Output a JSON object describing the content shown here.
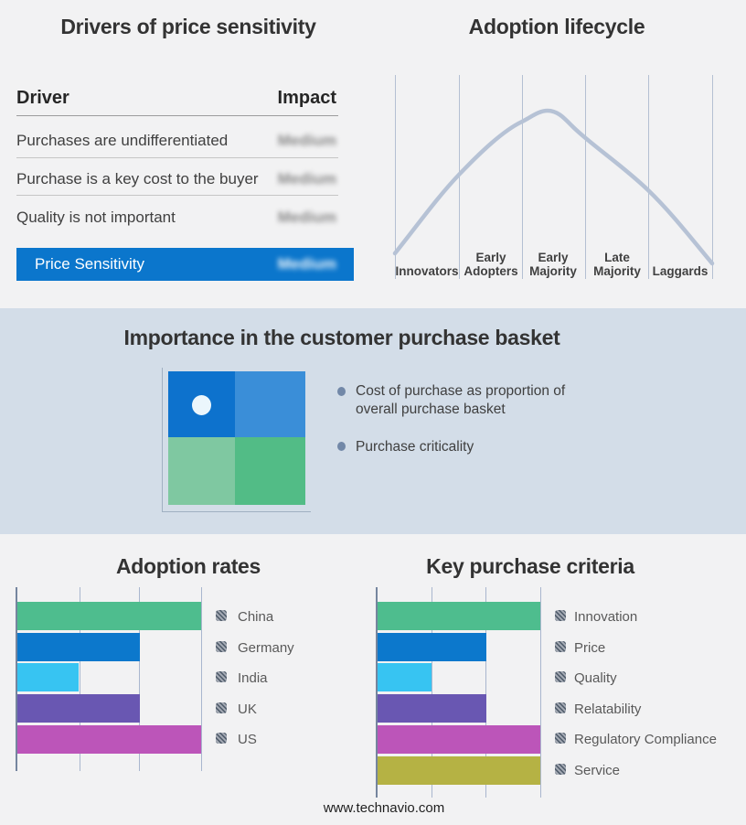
{
  "drivers_panel": {
    "title": "Drivers of price sensitivity",
    "col_driver": "Driver",
    "col_impact": "Impact",
    "impact_values_blurred": true,
    "rows": [
      {
        "driver": "Purchases are undifferentiated",
        "impact": "Medium"
      },
      {
        "driver": "Purchase is a key cost to the buyer",
        "impact": "Medium"
      },
      {
        "driver": "Quality is not important",
        "impact": "Medium"
      }
    ],
    "summary": {
      "label": "Price Sensitivity",
      "impact": "Medium"
    }
  },
  "basket_panel": {
    "title": "Importance in the customer purchase basket",
    "bullets": [
      "Cost of purchase as proportion of overall purchase basket",
      "Purchase criticality"
    ],
    "quadrant_colors": {
      "top_left": "#0d72cd",
      "top_right": "#3a8ed8",
      "bottom_left": "#7fc8a1",
      "bottom_right": "#52bc86"
    }
  },
  "footer": "www.technavio.com",
  "colors": {
    "band_mid_bg": "#d3dde8",
    "band_bg": "#f2f2f3",
    "accent_blue": "#0b76cc",
    "curve": "#b6c2d5",
    "green": "#4ebd8e",
    "blue": "#0c78cc",
    "cyan": "#37c4f2",
    "purple": "#6957b2",
    "magenta": "#bc55b9",
    "olive": "#b5b244"
  },
  "chart_data": [
    {
      "type": "line",
      "title": "Adoption lifecycle",
      "x_categories": [
        "Innovators",
        "Early Adopters",
        "Early Majority",
        "Late Majority",
        "Laggards"
      ],
      "stage_lines": [
        [
          "Innovators"
        ],
        [
          "Early",
          "Adopters"
        ],
        [
          "Early",
          "Majority"
        ],
        [
          "Late",
          "Majority"
        ],
        [
          "Laggards"
        ]
      ],
      "description": "Bell curve rising from Innovators, peaking at Early Majority, falling to Laggards",
      "grid": "vertical stage divider lines, no y axis"
    },
    {
      "type": "bar",
      "orientation": "horizontal",
      "title": "Adoption rates",
      "categories": [
        "China",
        "Germany",
        "India",
        "UK",
        "US"
      ],
      "values": [
        3,
        2,
        1,
        2,
        3
      ],
      "xlim": [
        0,
        3
      ],
      "value_scale": "relative units estimated from 3 unlabeled gridlines",
      "bar_colors": [
        "#4ebd8e",
        "#0c78cc",
        "#37c4f2",
        "#6957b2",
        "#bc55b9"
      ],
      "legend_position": "right"
    },
    {
      "type": "bar",
      "orientation": "horizontal",
      "title": "Key purchase criteria",
      "categories": [
        "Innovation",
        "Price",
        "Quality",
        "Relatability",
        "Regulatory Compliance",
        "Service"
      ],
      "values": [
        3,
        2,
        1,
        2,
        3,
        3
      ],
      "xlim": [
        0,
        3
      ],
      "value_scale": "relative units estimated from 3 unlabeled gridlines",
      "bar_colors": [
        "#4ebd8e",
        "#0c78cc",
        "#37c4f2",
        "#6957b2",
        "#bc55b9",
        "#b5b244"
      ],
      "legend_position": "right"
    }
  ]
}
